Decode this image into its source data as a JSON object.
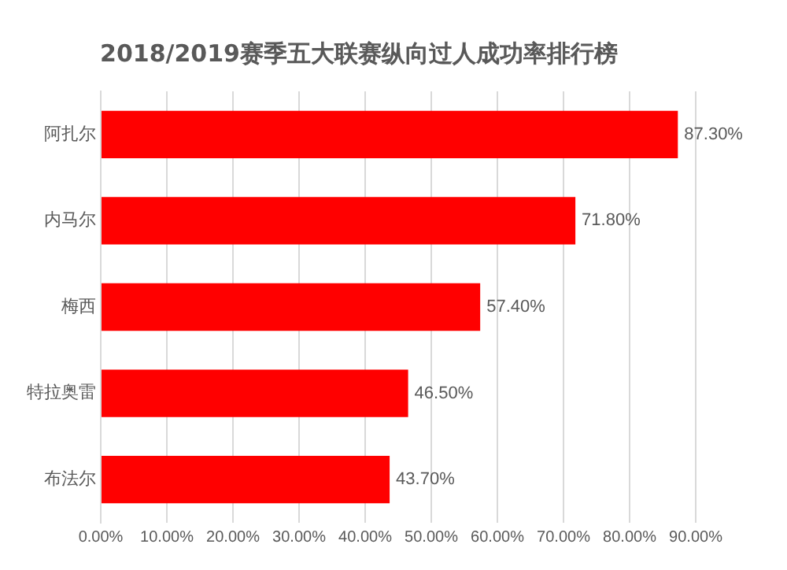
{
  "chart_data": {
    "type": "bar",
    "orientation": "horizontal",
    "title": "2018/2019赛季五大联赛纵向过人成功率排行榜",
    "categories": [
      "阿扎尔",
      "内马尔",
      "梅西",
      "特拉奥雷",
      "布法尔"
    ],
    "values": [
      87.3,
      71.8,
      57.4,
      46.5,
      43.7
    ],
    "value_labels": [
      "87.30%",
      "71.80%",
      "57.40%",
      "46.50%",
      "43.70%"
    ],
    "color": "#ff0000",
    "xlim": [
      0,
      90
    ],
    "xticks": [
      {
        "value": 0,
        "label": "0.00%"
      },
      {
        "value": 10,
        "label": "10.00%"
      },
      {
        "value": 20,
        "label": "20.00%"
      },
      {
        "value": 30,
        "label": "30.00%"
      },
      {
        "value": 40,
        "label": "40.00%"
      },
      {
        "value": 50,
        "label": "50.00%"
      },
      {
        "value": 60,
        "label": "60.00%"
      },
      {
        "value": 70,
        "label": "70.00%"
      },
      {
        "value": 80,
        "label": "80.00%"
      },
      {
        "value": 90,
        "label": "90.00%"
      }
    ],
    "grid": "x"
  }
}
